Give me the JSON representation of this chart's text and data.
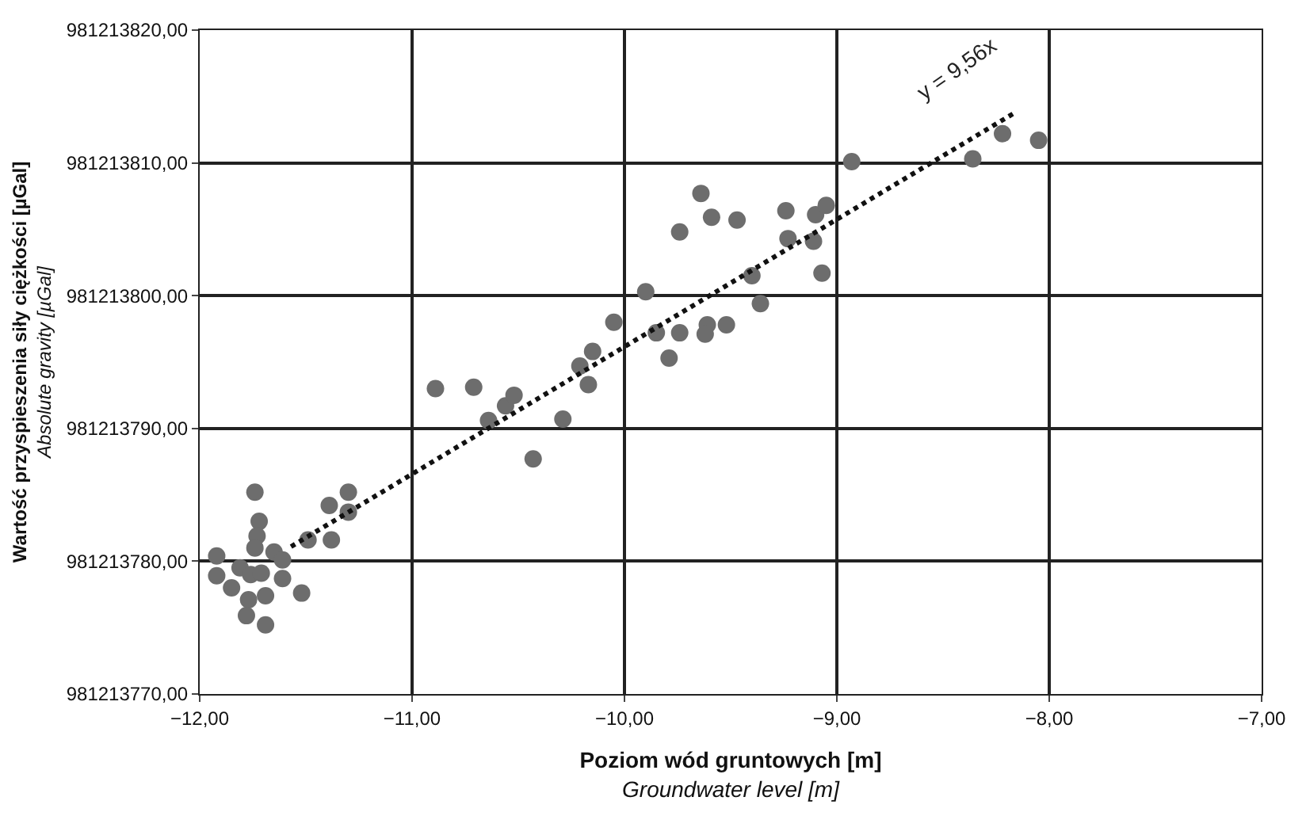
{
  "chart_data": {
    "type": "scatter",
    "xlabel": "Poziom wód gruntowych [m]\nGroundwater level [m]",
    "ylabel": "Wartość przyspieszenia siły ciężkości [µGal]\nAbsolute gravity [µGal]",
    "xlim": [
      -12,
      -7
    ],
    "ylim": [
      981213770,
      981213820
    ],
    "xticks": [
      {
        "value": -12,
        "label": "−12,00"
      },
      {
        "value": -11,
        "label": "−11,00"
      },
      {
        "value": -10,
        "label": "−10,00"
      },
      {
        "value": -9,
        "label": "−9,00"
      },
      {
        "value": -8,
        "label": "−8,00"
      },
      {
        "value": -7,
        "label": "−7,00"
      }
    ],
    "yticks": [
      {
        "value": 981213770,
        "label": "981213770,00"
      },
      {
        "value": 981213780,
        "label": "981213780,00"
      },
      {
        "value": 981213790,
        "label": "981213790,00"
      },
      {
        "value": 981213800,
        "label": "981213800,00"
      },
      {
        "value": 981213810,
        "label": "981213810,00"
      },
      {
        "value": 981213820,
        "label": "981213820,00"
      }
    ],
    "grid": true,
    "marker": "circle",
    "series": [
      {
        "color": "#6d6d6d",
        "x": [
          -11.74,
          -11.72,
          -11.73,
          -11.74,
          -11.65,
          -11.61,
          -11.92,
          -11.92,
          -11.85,
          -11.81,
          -11.76,
          -11.71,
          -11.61,
          -11.52,
          -11.77,
          -11.69,
          -11.78,
          -11.69,
          -11.49,
          -11.38,
          -11.39,
          -11.3,
          -11.3,
          -10.89,
          -10.71,
          -10.64,
          -10.56,
          -10.52,
          -10.43,
          -10.29,
          -10.21,
          -10.17,
          -10.15,
          -10.05,
          -9.9,
          -9.85,
          -9.79,
          -9.74,
          -9.61,
          -9.62,
          -9.52,
          -9.64,
          -9.59,
          -9.47,
          -9.74,
          -9.4,
          -9.36,
          -9.24,
          -9.23,
          -9.1,
          -9.05,
          -9.11,
          -9.07,
          -8.93,
          -8.36,
          -8.22,
          -8.05
        ],
        "values": [
          981213785.2,
          981213783.0,
          981213781.9,
          981213781.0,
          981213780.7,
          981213780.1,
          981213780.4,
          981213778.9,
          981213778.0,
          981213779.5,
          981213779.0,
          981213779.1,
          981213778.7,
          981213777.6,
          981213777.1,
          981213777.4,
          981213775.9,
          981213775.2,
          981213781.6,
          981213781.6,
          981213784.2,
          981213785.2,
          981213783.7,
          981213793.0,
          981213793.1,
          981213790.6,
          981213791.7,
          981213792.5,
          981213787.7,
          981213790.7,
          981213794.7,
          981213793.3,
          981213795.8,
          981213798.0,
          981213800.3,
          981213797.2,
          981213795.3,
          981213797.2,
          981213797.8,
          981213797.1,
          981213797.8,
          981213807.7,
          981213805.9,
          981213805.7,
          981213804.8,
          981213801.5,
          981213799.4,
          981213806.4,
          981213804.3,
          981213806.1,
          981213806.8,
          981213804.1,
          981213801.7,
          981213810.1,
          981213810.3,
          981213812.2,
          981213811.7
        ]
      },
      {
        "type": "line",
        "marker": "none",
        "color": "#111111",
        "line_style": "dotted",
        "x": [
          -11.57,
          -8.16
        ],
        "values": [
          981213781.1,
          981213813.8
        ]
      }
    ],
    "annotations": [
      "y = 9,56x"
    ]
  }
}
